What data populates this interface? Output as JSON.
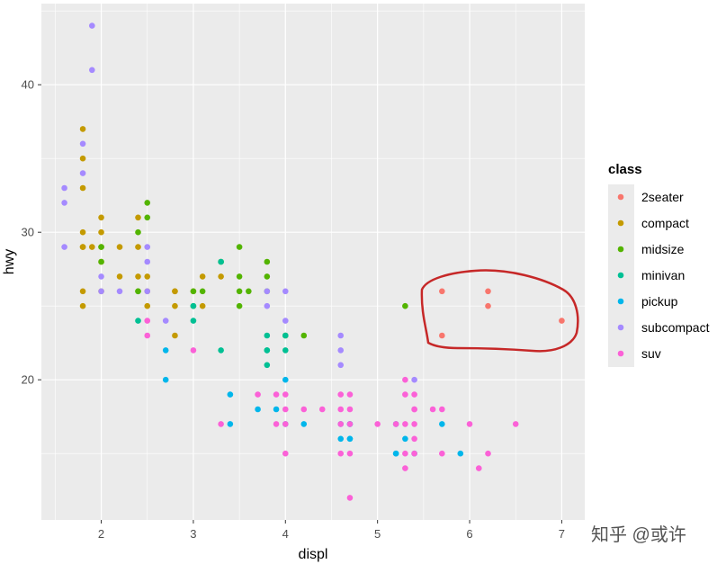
{
  "chart_data": {
    "type": "scatter",
    "xlabel": "displ",
    "ylabel": "hwy",
    "xlim": [
      1.35,
      7.25
    ],
    "ylim": [
      10.5,
      45.5
    ],
    "x_ticks": [
      2,
      3,
      4,
      5,
      6,
      7
    ],
    "y_ticks": [
      20,
      30,
      40
    ],
    "grid": true,
    "legend": {
      "title": "class",
      "position": "right"
    },
    "series": [
      {
        "name": "2seater",
        "color": "#F8766D",
        "points": [
          [
            5.7,
            26
          ],
          [
            5.7,
            23
          ],
          [
            6.2,
            26
          ],
          [
            6.2,
            25
          ],
          [
            7.0,
            24
          ]
        ]
      },
      {
        "name": "compact",
        "color": "#C49A00",
        "points": [
          [
            1.8,
            29
          ],
          [
            1.8,
            29
          ],
          [
            2.0,
            31
          ],
          [
            2.0,
            30
          ],
          [
            2.8,
            26
          ],
          [
            2.8,
            26
          ],
          [
            3.1,
            27
          ],
          [
            1.8,
            26
          ],
          [
            1.8,
            25
          ],
          [
            2.0,
            28
          ],
          [
            2.0,
            29
          ],
          [
            2.8,
            25
          ],
          [
            3.1,
            25
          ],
          [
            2.2,
            27
          ],
          [
            2.2,
            29
          ],
          [
            2.4,
            31
          ],
          [
            2.4,
            27
          ],
          [
            3.0,
            26
          ],
          [
            3.3,
            27
          ],
          [
            1.8,
            33
          ],
          [
            1.8,
            35
          ],
          [
            1.8,
            37
          ],
          [
            1.8,
            30
          ],
          [
            2.5,
            26
          ],
          [
            2.5,
            25
          ],
          [
            2.5,
            27
          ],
          [
            2.8,
            23
          ],
          [
            1.9,
            29
          ],
          [
            2.0,
            26
          ],
          [
            2.4,
            29
          ]
        ]
      },
      {
        "name": "midsize",
        "color": "#53B400",
        "points": [
          [
            2.4,
            30
          ],
          [
            2.4,
            26
          ],
          [
            3.1,
            26
          ],
          [
            3.5,
            29
          ],
          [
            3.6,
            26
          ],
          [
            2.5,
            32
          ],
          [
            2.5,
            31
          ],
          [
            3.3,
            28
          ],
          [
            3.8,
            26
          ],
          [
            3.8,
            28
          ],
          [
            3.8,
            27
          ],
          [
            4.0,
            23
          ],
          [
            4.2,
            23
          ],
          [
            2.0,
            29
          ],
          [
            2.0,
            28
          ],
          [
            2.4,
            26
          ],
          [
            3.5,
            26
          ],
          [
            3.5,
            25
          ],
          [
            5.3,
            25
          ],
          [
            3.0,
            25
          ],
          [
            3.0,
            26
          ],
          [
            3.5,
            27
          ]
        ]
      },
      {
        "name": "minivan",
        "color": "#00C094",
        "points": [
          [
            2.4,
            24
          ],
          [
            3.0,
            24
          ],
          [
            3.3,
            22
          ],
          [
            3.3,
            28
          ],
          [
            3.8,
            22
          ],
          [
            3.8,
            21
          ],
          [
            3.8,
            23
          ],
          [
            4.0,
            23
          ],
          [
            3.0,
            25
          ],
          [
            3.8,
            22
          ],
          [
            4.0,
            22
          ]
        ]
      },
      {
        "name": "pickup",
        "color": "#00B6EB",
        "points": [
          [
            2.7,
            20
          ],
          [
            2.7,
            22
          ],
          [
            3.4,
            19
          ],
          [
            3.4,
            17
          ],
          [
            4.0,
            20
          ],
          [
            4.0,
            17
          ],
          [
            4.7,
            17
          ],
          [
            4.7,
            16
          ],
          [
            5.2,
            17
          ],
          [
            5.2,
            15
          ],
          [
            5.7,
            17
          ],
          [
            5.9,
            15
          ],
          [
            3.7,
            18
          ],
          [
            4.7,
            17
          ],
          [
            4.7,
            16
          ],
          [
            5.2,
            15
          ],
          [
            3.9,
            18
          ],
          [
            4.2,
            17
          ],
          [
            4.6,
            17
          ],
          [
            5.3,
            16
          ],
          [
            5.4,
            15
          ],
          [
            4.6,
            16
          ]
        ]
      },
      {
        "name": "subcompact",
        "color": "#A58AFF",
        "points": [
          [
            1.6,
            33
          ],
          [
            1.6,
            32
          ],
          [
            1.6,
            29
          ],
          [
            1.8,
            34
          ],
          [
            1.8,
            36
          ],
          [
            1.9,
            41
          ],
          [
            1.9,
            44
          ],
          [
            2.0,
            26
          ],
          [
            2.0,
            27
          ],
          [
            2.2,
            26
          ],
          [
            2.5,
            29
          ],
          [
            2.5,
            28
          ],
          [
            2.5,
            26
          ],
          [
            2.7,
            24
          ],
          [
            3.8,
            26
          ],
          [
            3.8,
            25
          ],
          [
            4.0,
            26
          ],
          [
            4.0,
            24
          ],
          [
            4.6,
            23
          ],
          [
            4.6,
            22
          ],
          [
            4.6,
            21
          ],
          [
            5.4,
            20
          ]
        ]
      },
      {
        "name": "suv",
        "color": "#FB61D7",
        "points": [
          [
            2.5,
            24
          ],
          [
            2.5,
            23
          ],
          [
            3.0,
            22
          ],
          [
            3.3,
            17
          ],
          [
            3.7,
            19
          ],
          [
            3.9,
            17
          ],
          [
            4.0,
            19
          ],
          [
            4.0,
            17
          ],
          [
            4.0,
            15
          ],
          [
            4.2,
            18
          ],
          [
            4.4,
            18
          ],
          [
            4.6,
            19
          ],
          [
            4.6,
            18
          ],
          [
            4.6,
            15
          ],
          [
            4.7,
            19
          ],
          [
            4.7,
            18
          ],
          [
            4.7,
            15
          ],
          [
            4.7,
            12
          ],
          [
            5.0,
            17
          ],
          [
            5.3,
            20
          ],
          [
            5.3,
            17
          ],
          [
            5.3,
            15
          ],
          [
            5.3,
            14
          ],
          [
            5.4,
            19
          ],
          [
            5.4,
            18
          ],
          [
            5.4,
            17
          ],
          [
            5.4,
            16
          ],
          [
            5.4,
            15
          ],
          [
            5.6,
            18
          ],
          [
            5.7,
            18
          ],
          [
            5.7,
            15
          ],
          [
            6.0,
            17
          ],
          [
            6.1,
            14
          ],
          [
            6.5,
            17
          ],
          [
            3.9,
            19
          ],
          [
            4.6,
            17
          ],
          [
            4.7,
            17
          ],
          [
            5.2,
            17
          ],
          [
            5.3,
            19
          ],
          [
            5.4,
            18
          ],
          [
            6.2,
            15
          ],
          [
            4.0,
            18
          ]
        ]
      }
    ],
    "annotations": [
      {
        "type": "freehand-loop",
        "color": "#C62828",
        "encloses": "2seater"
      }
    ]
  },
  "watermark": "知乎 @或许"
}
